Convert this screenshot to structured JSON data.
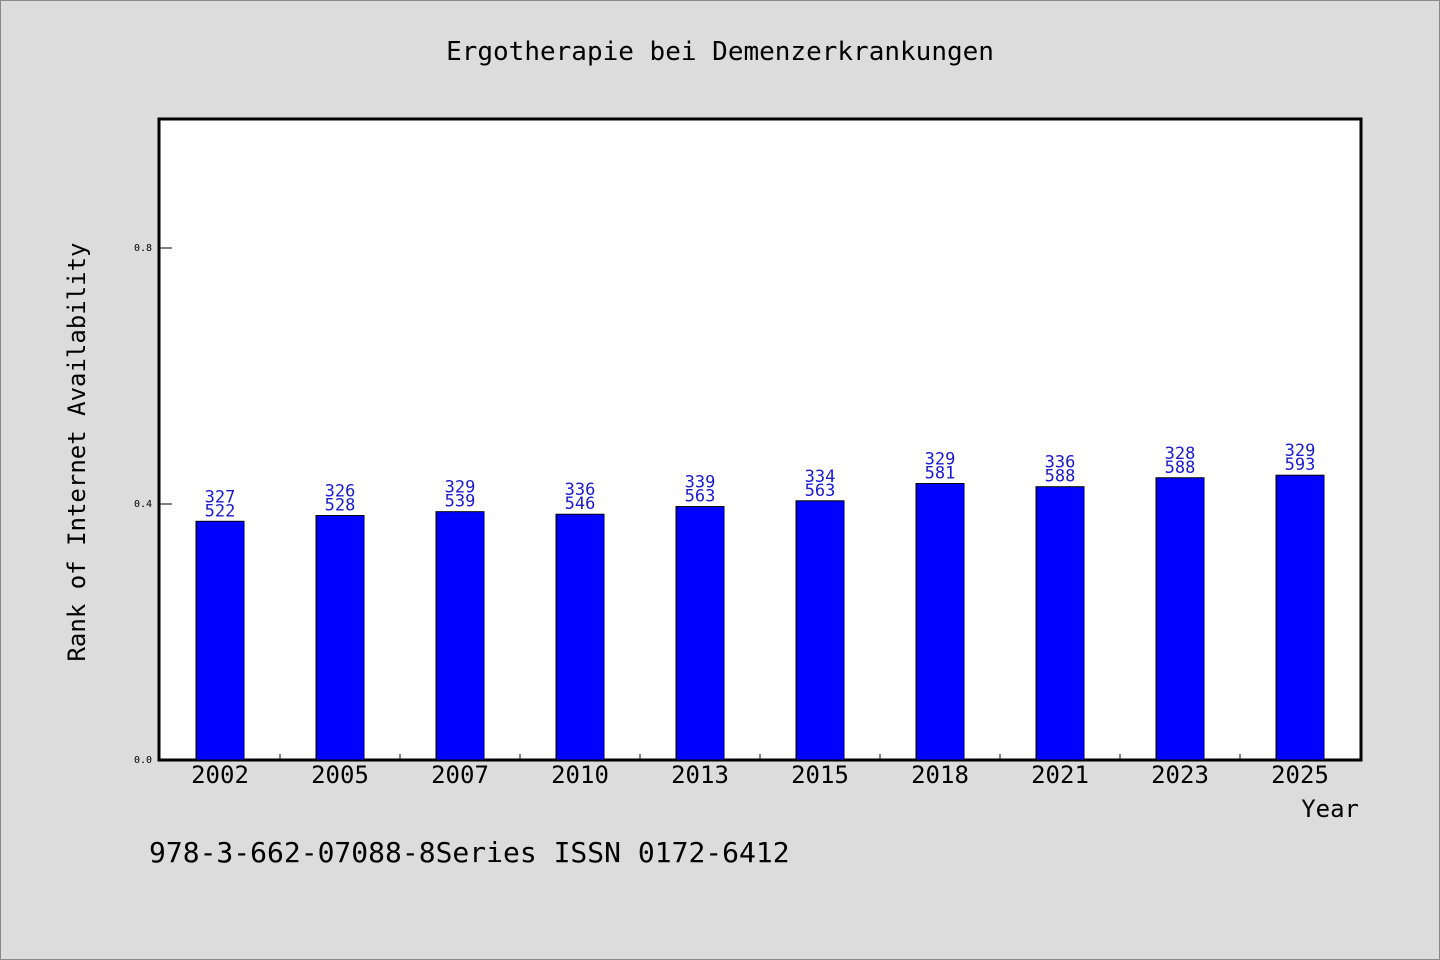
{
  "chart_data": {
    "type": "bar",
    "title": "Ergotherapie bei Demenzerkrankungen",
    "xlabel": "Year",
    "ylabel": "Rank of Internet Availability",
    "categories": [
      "2002",
      "2005",
      "2007",
      "2010",
      "2013",
      "2015",
      "2018",
      "2021",
      "2023",
      "2025"
    ],
    "values": [
      0.373,
      0.382,
      0.388,
      0.384,
      0.396,
      0.405,
      0.432,
      0.427,
      0.441,
      0.445
    ],
    "data_labels": [
      [
        "327",
        "522"
      ],
      [
        "326",
        "528"
      ],
      [
        "329",
        "539"
      ],
      [
        "336",
        "546"
      ],
      [
        "339",
        "563"
      ],
      [
        "334",
        "563"
      ],
      [
        "329",
        "581"
      ],
      [
        "336",
        "588"
      ],
      [
        "328",
        "588"
      ],
      [
        "329",
        "593"
      ]
    ],
    "yticks": [
      0.0,
      0.4,
      0.8
    ],
    "ytick_labels": [
      "0.0",
      "0.4",
      "0.8"
    ],
    "ylim": [
      0,
      1.0
    ],
    "grid": false,
    "bar_color": "#0000ff",
    "label_color": "#1a1ad0",
    "background_color": "#dcdcdc",
    "plot_background": "#ffffff"
  },
  "footer": {
    "text": "978-3-662-07088-8Series ISSN 0172-6412"
  }
}
